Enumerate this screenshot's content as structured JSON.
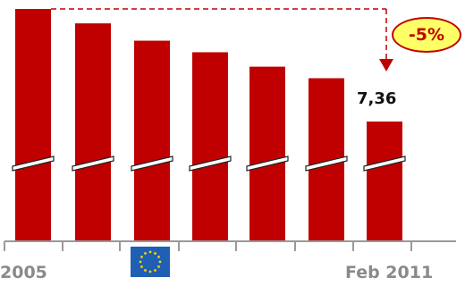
{
  "chart_data": {
    "type": "bar",
    "categories": [
      "2005",
      "",
      "",
      "",
      "",
      "",
      "Feb 2011"
    ],
    "values": [
      7.75,
      7.7,
      7.64,
      7.6,
      7.55,
      7.51,
      7.36
    ],
    "broken_axis": true,
    "axis_labels": {
      "first": "2005",
      "last": "Feb 2011"
    },
    "data_labels": {
      "last": "7,36"
    },
    "annotation": {
      "text": "-5%"
    },
    "colors": {
      "bar": "#c00000",
      "axis": "#999999",
      "annotation_line": "#c00000",
      "badge_fill": "#ffff66",
      "badge_text": "#c00000",
      "flag_blue": "#1f5fb4",
      "flag_stars": "#ffd400"
    },
    "icons": {
      "eu_flag": "eu-flag-icon"
    }
  }
}
